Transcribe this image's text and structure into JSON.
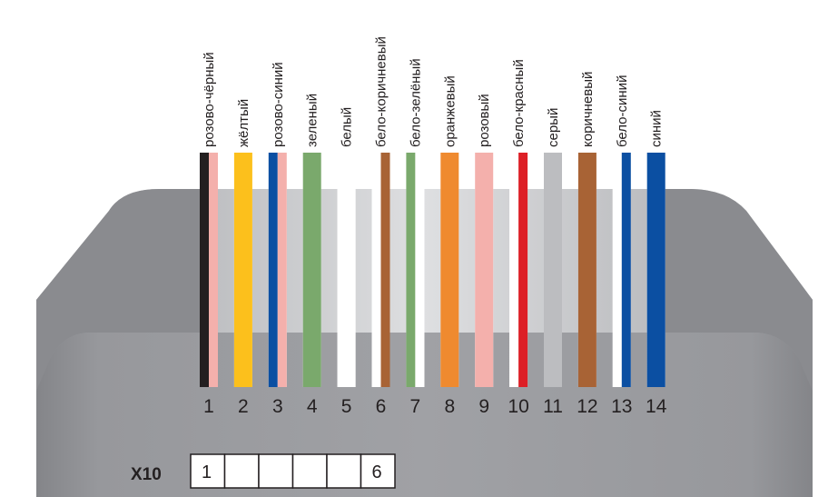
{
  "connector": {
    "name": "X10",
    "cells": [
      "1",
      "",
      "",
      "",
      "",
      "6"
    ]
  },
  "wires": [
    {
      "num": "1",
      "label": "розово-чёрный",
      "colors": [
        "#231f20",
        "#f4b0ac"
      ]
    },
    {
      "num": "2",
      "label": "жёлтый",
      "colors": [
        "#fcc01c"
      ]
    },
    {
      "num": "3",
      "label": "розово-синий",
      "colors": [
        "#0b4fa2",
        "#f4b0ac"
      ]
    },
    {
      "num": "4",
      "label": "зеленый",
      "colors": [
        "#7aa96c"
      ]
    },
    {
      "num": "5",
      "label": "белый",
      "colors": [
        "#ffffff"
      ]
    },
    {
      "num": "6",
      "label": "бело-коричневый",
      "colors": [
        "#ffffff",
        "#a86335"
      ]
    },
    {
      "num": "7",
      "label": "бело-зелёный",
      "colors": [
        "#7aa96c",
        "#ffffff"
      ]
    },
    {
      "num": "8",
      "label": "оранжевый",
      "colors": [
        "#ef8a2f"
      ]
    },
    {
      "num": "9",
      "label": "розовый",
      "colors": [
        "#f4b0ac"
      ]
    },
    {
      "num": "10",
      "label": "бело-красный",
      "colors": [
        "#ffffff",
        "#dd1f26"
      ]
    },
    {
      "num": "11",
      "label": "серый",
      "colors": [
        "#bcbdc0"
      ]
    },
    {
      "num": "12",
      "label": "коричневый",
      "colors": [
        "#a86335"
      ]
    },
    {
      "num": "13",
      "label": "бело-синий",
      "colors": [
        "#ffffff",
        "#0b4fa2"
      ]
    },
    {
      "num": "14",
      "label": "синий",
      "colors": [
        "#0b4fa2"
      ]
    }
  ]
}
